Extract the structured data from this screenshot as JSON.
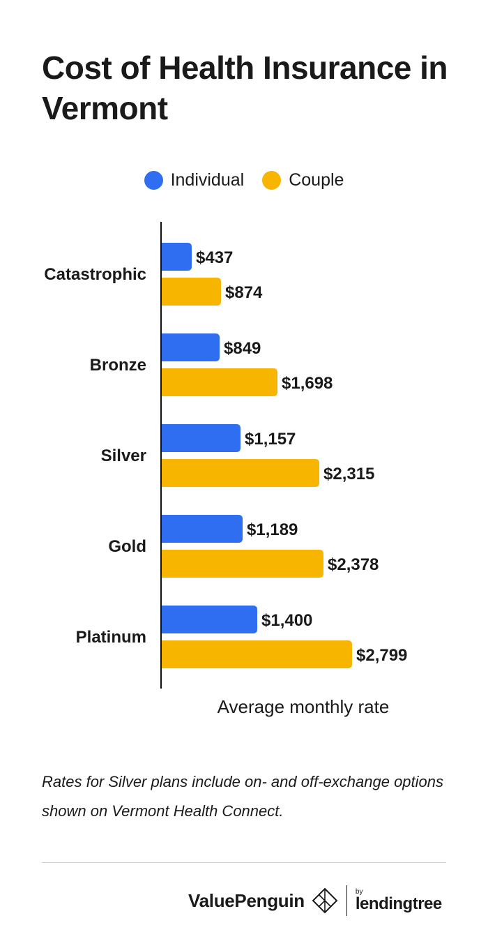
{
  "title": "Cost of Health Insurance in Vermont",
  "legend": [
    {
      "label": "Individual",
      "color": "#2f6ef0"
    },
    {
      "label": "Couple",
      "color": "#f7b500"
    }
  ],
  "chart_data": {
    "type": "bar",
    "orientation": "horizontal",
    "categories": [
      "Catastrophic",
      "Bronze",
      "Silver",
      "Gold",
      "Platinum"
    ],
    "series": [
      {
        "name": "Individual",
        "color": "#2f6ef0",
        "values": [
          437,
          849,
          1157,
          1189,
          1400
        ],
        "labels": [
          "$437",
          "$849",
          "$1,157",
          "$1,189",
          "$1,400"
        ]
      },
      {
        "name": "Couple",
        "color": "#f7b500",
        "values": [
          874,
          1698,
          2315,
          2378,
          2799
        ],
        "labels": [
          "$874",
          "$1,698",
          "$2,315",
          "$2,378",
          "$2,799"
        ]
      }
    ],
    "xlabel": "Average monthly rate",
    "ylabel": "",
    "xlim": [
      0,
      2799
    ],
    "grid": false,
    "legend_position": "top-center"
  },
  "note": "Rates for Silver plans include on- and off-exchange options shown on Vermont Health Connect.",
  "footer": {
    "brand": "ValuePenguin",
    "by": "by",
    "partner": "lendingtree"
  }
}
